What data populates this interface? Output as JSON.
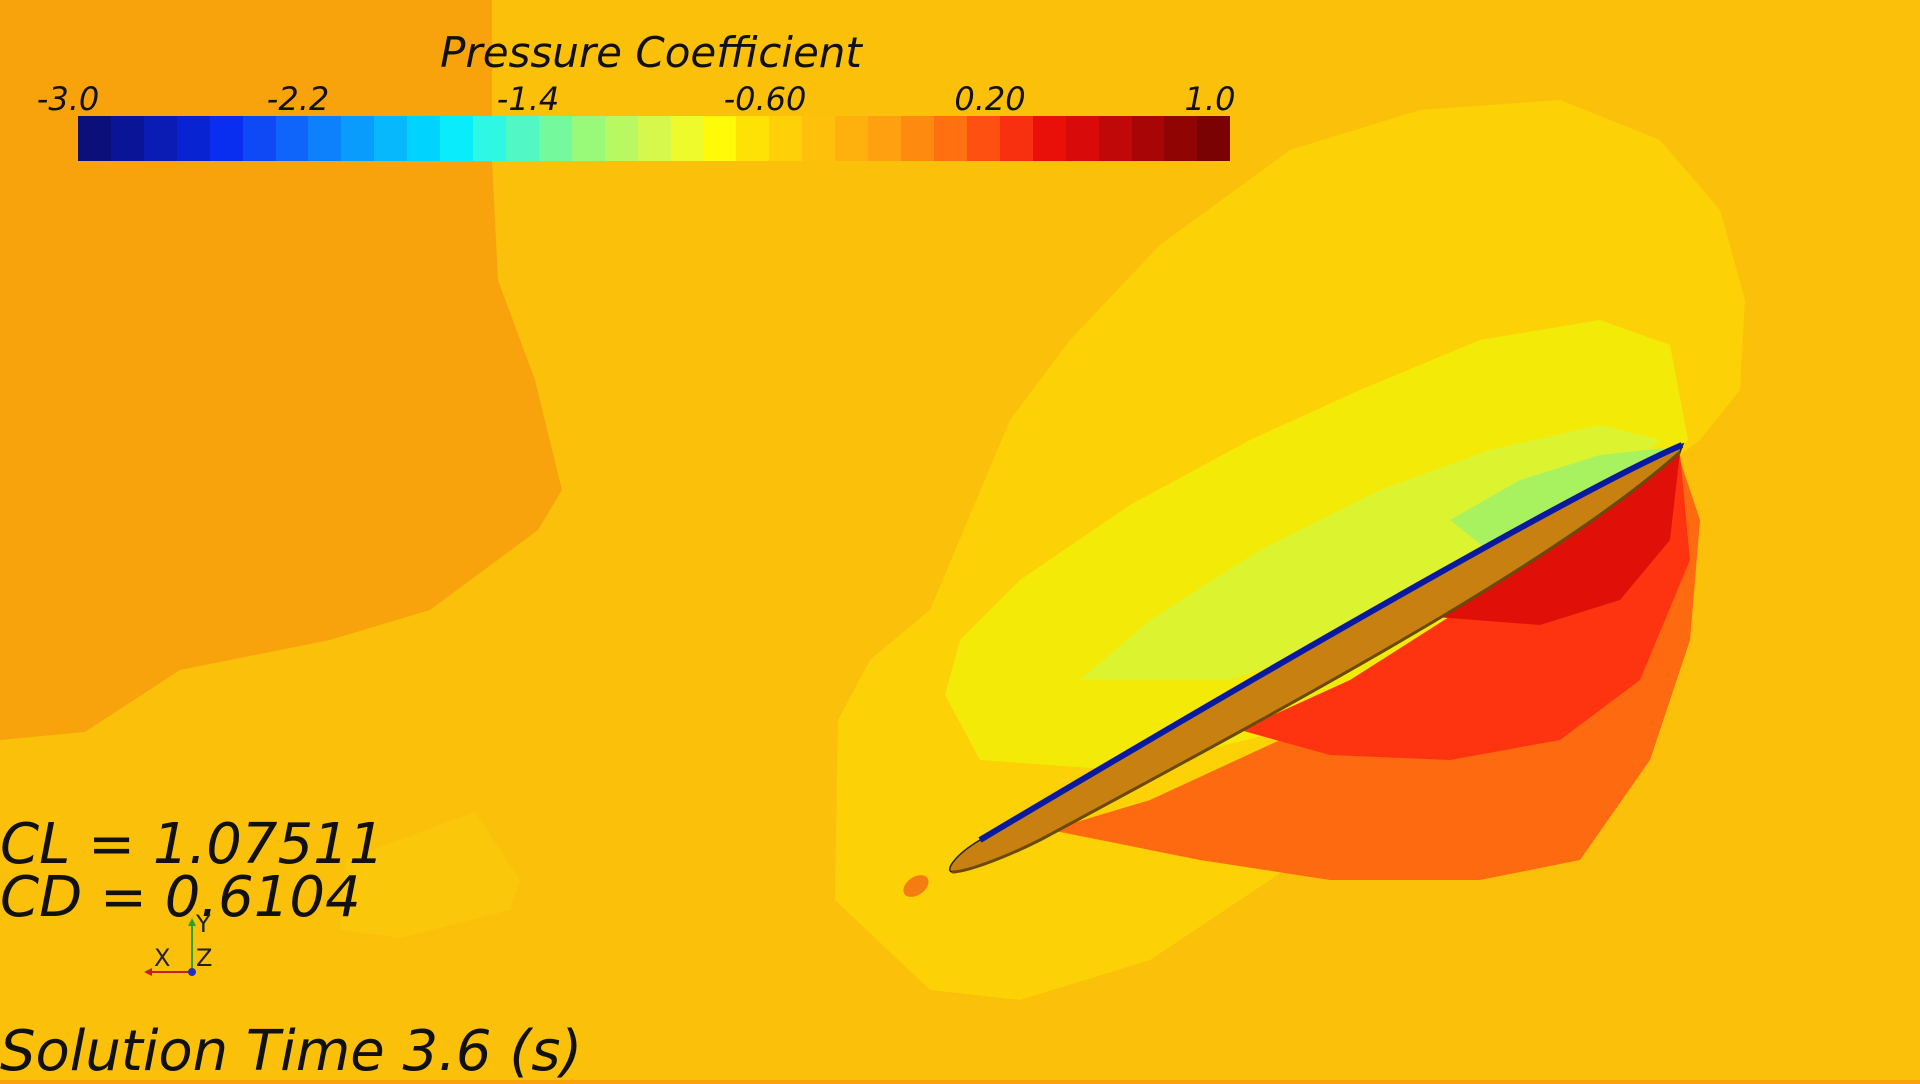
{
  "legend": {
    "title": "Pressure Coefficient",
    "ticks": [
      "-3.0",
      "-2.2",
      "-1.4",
      "-0.60",
      "0.20",
      "1.0"
    ],
    "colormap": [
      "#0a0f7a",
      "#0a1496",
      "#0a1cb4",
      "#0824d2",
      "#0a2ef0",
      "#0f48f5",
      "#0f64fa",
      "#0d80fb",
      "#0a9cfc",
      "#08b8fd",
      "#00d4fe",
      "#08ecfc",
      "#2ef8e4",
      "#52f8c4",
      "#74fa9c",
      "#98fa78",
      "#b8f860",
      "#d6f84c",
      "#eefa2c",
      "#fefa08",
      "#fee206",
      "#fed008",
      "#fec00a",
      "#feb00c",
      "#fea010",
      "#fe8a10",
      "#fe7010",
      "#fe5010",
      "#f83010",
      "#e81008",
      "#d80a0a",
      "#c00808",
      "#a80606",
      "#900404",
      "#7a0202"
    ]
  },
  "coefficients": {
    "cl": "CL = 1.07511",
    "cd": "CD = 0.6104"
  },
  "axes": {
    "x": "X",
    "y": "Y",
    "z": "Z"
  },
  "solution_time": "Solution Time 3.6 (s)",
  "colors": {
    "background": "#f8a30c",
    "outer_yellow": "#fbc00a",
    "inner_yellow": "#fcd106",
    "suction_core": "#f4f20a",
    "pressure_high": "#e81008",
    "pressure_mid": "#fe3010"
  }
}
